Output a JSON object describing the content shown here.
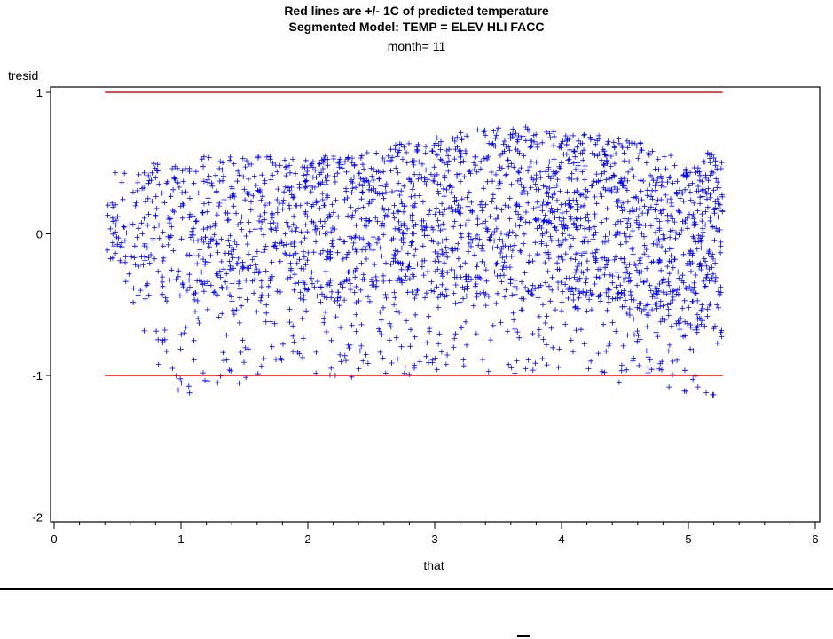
{
  "header": {
    "title_line1": "Red lines are +/- 1C of predicted temperature",
    "title_line2": "Segmented Model: TEMP = ELEV HLI FACC",
    "title_line3": "month= 11"
  },
  "chart_data": {
    "type": "scatter",
    "title": "Red lines are +/- 1C of predicted temperature",
    "subtitle": "Segmented Model: TEMP = ELEV HLI FACC",
    "by_group": "month= 11",
    "xlabel": "that",
    "ylabel": "tresid",
    "xlim": [
      0,
      6
    ],
    "ylim": [
      -2,
      1.05
    ],
    "x_ticks": [
      "0",
      "1",
      "2",
      "3",
      "4",
      "5",
      "6"
    ],
    "y_ticks": [
      "1",
      "0",
      "-1",
      "-2"
    ],
    "marker": "+",
    "point_color": "#0000ff",
    "grid": false,
    "reference_lines": [
      {
        "y": 1,
        "x_range": [
          0.4,
          5.27
        ],
        "color": "#ff0000"
      },
      {
        "y": -1,
        "x_range": [
          0.4,
          5.27
        ],
        "color": "#ff0000"
      }
    ],
    "point_cloud": {
      "x_range": [
        0.4,
        5.27
      ],
      "upper_envelope": [
        [
          0.4,
          0.2
        ],
        [
          0.5,
          0.5
        ],
        [
          0.8,
          0.5
        ],
        [
          1.2,
          0.55
        ],
        [
          1.8,
          0.55
        ],
        [
          2.3,
          0.55
        ],
        [
          2.8,
          0.65
        ],
        [
          3.2,
          0.72
        ],
        [
          3.6,
          0.77
        ],
        [
          4.0,
          0.72
        ],
        [
          4.5,
          0.68
        ],
        [
          4.8,
          0.6
        ],
        [
          5.0,
          0.45
        ],
        [
          5.15,
          0.62
        ],
        [
          5.27,
          0.5
        ]
      ],
      "lower_envelope": [
        [
          0.4,
          -0.1
        ],
        [
          0.6,
          -0.5
        ],
        [
          0.8,
          -0.9
        ],
        [
          1.0,
          -1.15
        ],
        [
          1.4,
          -1.1
        ],
        [
          2.0,
          -1.05
        ],
        [
          2.6,
          -1.0
        ],
        [
          3.2,
          -0.98
        ],
        [
          3.8,
          -1.0
        ],
        [
          4.4,
          -1.05
        ],
        [
          4.9,
          -1.1
        ],
        [
          5.1,
          -1.15
        ],
        [
          5.27,
          -1.25
        ]
      ],
      "dense_core": [
        [
          0.8,
          0.0,
          0.4
        ],
        [
          1.5,
          0.05,
          0.45
        ],
        [
          2.2,
          0.0,
          0.5
        ],
        [
          3.0,
          0.05,
          0.55
        ],
        [
          3.7,
          0.05,
          0.6
        ],
        [
          4.4,
          0.0,
          0.6
        ],
        [
          5.1,
          -0.2,
          0.7
        ]
      ]
    }
  }
}
